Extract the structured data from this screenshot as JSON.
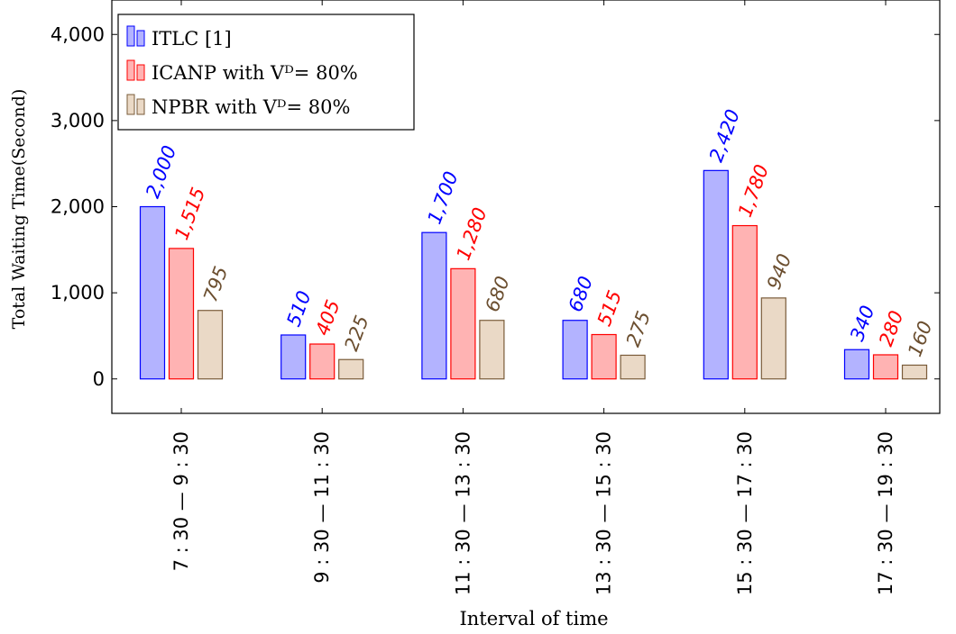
{
  "chart_data": {
    "type": "bar",
    "xlabel": "Interval of time",
    "ylabel": "Total Waiting Time(Second)",
    "categories": [
      "7 : 30 — 9 : 30",
      "9 : 30 — 11 : 30",
      "11 : 30 — 13 : 30",
      "13 : 30 — 15 : 30",
      "15 : 30 — 17 : 30",
      "17 : 30 — 19 : 30"
    ],
    "series": [
      {
        "name": "ITLC [1]",
        "values": [
          2000,
          510,
          1700,
          680,
          2420,
          340
        ],
        "fill": "#b3b3ff",
        "stroke": "#0000ff",
        "label_color": "#0000ff",
        "labels": [
          "2,000",
          "510",
          "1,700",
          "680",
          "2,420",
          "340"
        ]
      },
      {
        "name": "ICANP with Vᴰ= 80%",
        "values": [
          1515,
          405,
          1280,
          515,
          1780,
          280
        ],
        "fill": "#ffb3b3",
        "stroke": "#ff0000",
        "label_color": "#ff0000",
        "labels": [
          "1,515",
          "405",
          "1,280",
          "515",
          "1,780",
          "280"
        ]
      },
      {
        "name": "NPBR with Vᴰ= 80%",
        "values": [
          795,
          225,
          680,
          275,
          940,
          160
        ],
        "fill": "#ead9c6",
        "stroke": "#7a5c3a",
        "label_color": "#6b4e2f",
        "labels": [
          "795",
          "225",
          "680",
          "275",
          "940",
          "160"
        ]
      }
    ],
    "ylim": [
      -400,
      4400
    ],
    "yticks": [
      0,
      1000,
      2000,
      3000,
      4000
    ],
    "ytick_labels": [
      "0",
      "1,000",
      "2,000",
      "3,000",
      "4,000"
    ],
    "legend_position": "top-left",
    "grid": false
  }
}
